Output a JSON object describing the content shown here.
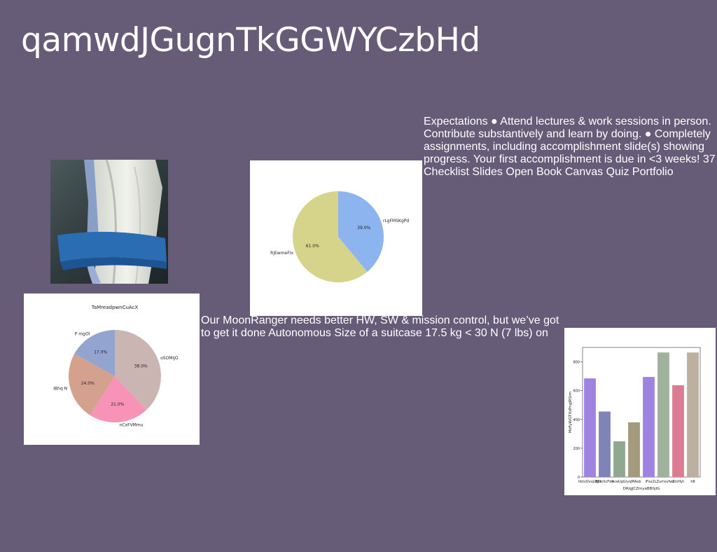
{
  "slide": {
    "title": "qamwdJGugnTkGGWYCzbHd",
    "text_right": "Expectations ● Attend lectures & work sessions in person. Contribute substantively and learn by doing. ● Completely assignments, including accomplishment slide(s) showing progress. Your first accomplishment is due in <3 weeks! 37 Checklist Slides Open Book Canvas Quiz Portfolio",
    "text_middle": "Our MoonRanger needs better HW, SW & mission control, but we’ve got to get it done Autonomous Size of a suitcase 17.5 kg < 30 N (7 lbs) on",
    "background_color": "#675c78"
  },
  "chart_data": [
    {
      "type": "pie",
      "title": "",
      "labels": [
        "rLgFMSKgPd",
        "RjEwmeFIx"
      ],
      "values": [
        39.0,
        61.0
      ],
      "value_labels": [
        "39.0%",
        "61.0%"
      ],
      "colors": [
        "#8cb4ef",
        "#d6d38a"
      ]
    },
    {
      "type": "pie",
      "title": "TaMreadpwnCuAcX",
      "labels": [
        "oSOMIjO",
        "nCxFVMmu",
        "IBhq N",
        "P mgOl"
      ],
      "values": [
        38.0,
        21.0,
        24.0,
        17.0
      ],
      "value_labels": [
        "38.0%",
        "21.0%",
        "24.0%",
        "17.0%"
      ],
      "colors": [
        "#cbb5b3",
        "#f892b7",
        "#d5a18f",
        "#93a5cf"
      ]
    },
    {
      "type": "bar",
      "title": "",
      "xlabel": "DRlgJCZmyaBBhjIG",
      "ylabel": "MzFyWGTXsPngIRSim",
      "categories": [
        "hktsOvvpbjrx",
        "ElllnXcFdn",
        "AceUgGl",
        "yqMAxb",
        "iFsx",
        "2LZumsvfwu",
        "ZmHyt",
        "h8"
      ],
      "values": [
        685,
        455,
        248,
        380,
        695,
        865,
        638,
        865
      ],
      "colors": [
        "#9e83e0",
        "#8083b8",
        "#8fa88f",
        "#a49a7c",
        "#9e83e0",
        "#9eb29c",
        "#dc7c93",
        "#bcb0a0"
      ],
      "yticks": [
        0,
        200,
        400,
        600,
        800
      ],
      "ylim": [
        0,
        900
      ]
    }
  ]
}
